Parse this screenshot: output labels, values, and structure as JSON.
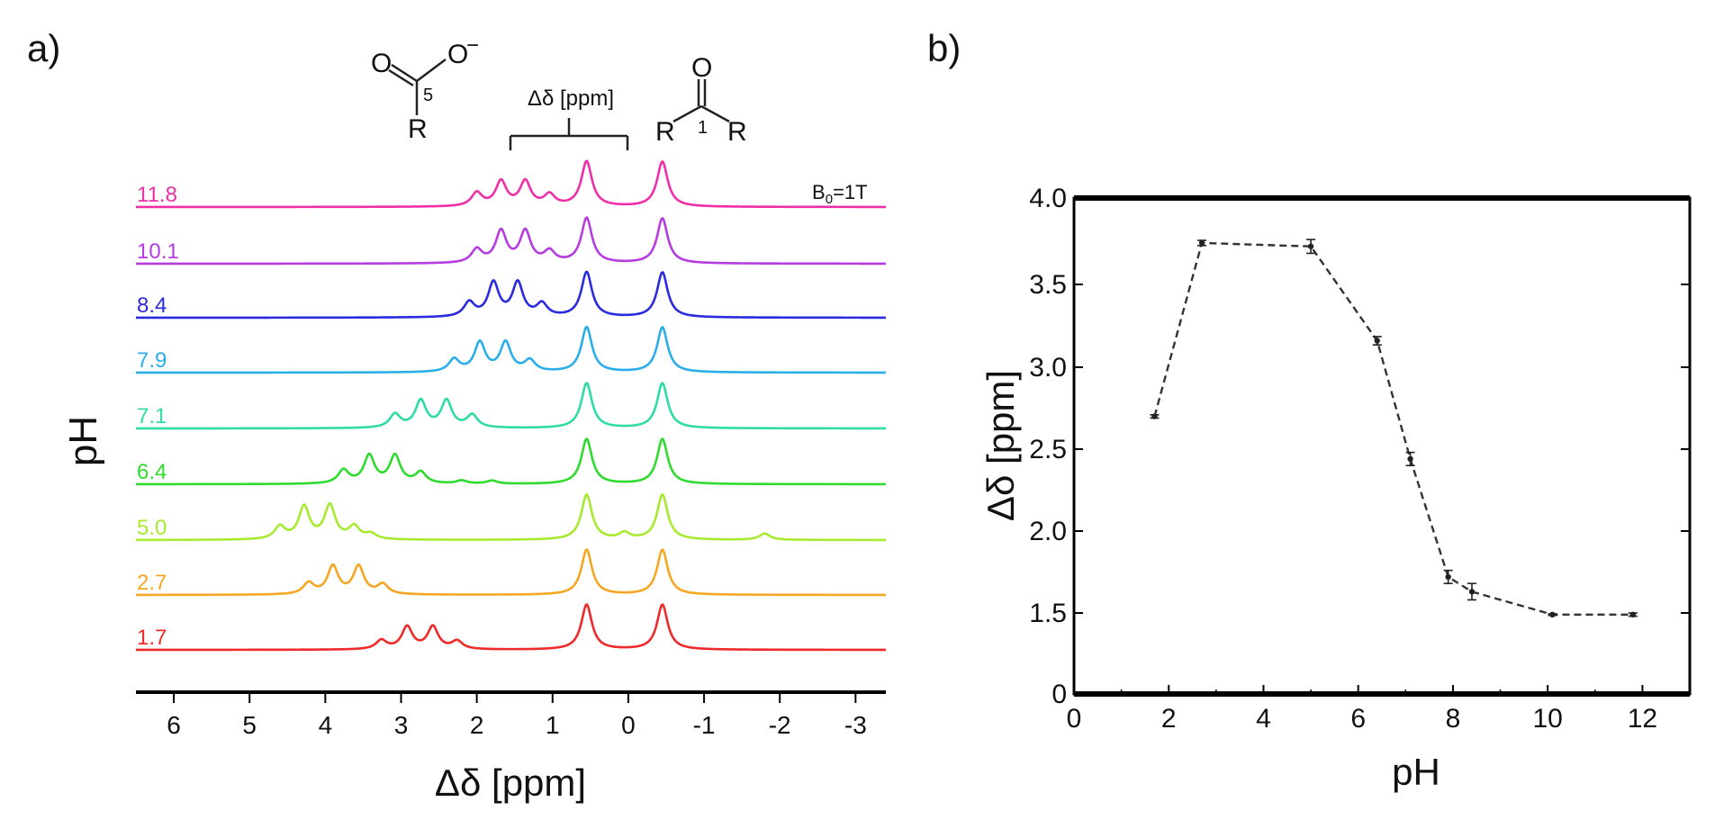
{
  "panel_a": {
    "label": "a)",
    "field_label": "B",
    "field_sub": "0",
    "field_val": "=1T",
    "bracket_label": "Δδ [ppm]",
    "carboxylate": {
      "oxygen_left": "O",
      "oxygen_right": "O",
      "charge": "−",
      "carbon_num": "5",
      "r": "R"
    },
    "ketone": {
      "oxygen": "O",
      "carbon_num": "1",
      "r_left": "R",
      "r_right": "R"
    }
  },
  "panel_b": {
    "label": "b)"
  },
  "chart_data": [
    {
      "type": "line",
      "title": "",
      "xlabel": "Δδ [ppm]",
      "ylabel": "pH",
      "x_reversed": true,
      "xlim": [
        6.5,
        -3.4
      ],
      "x_ticks": [
        6,
        5,
        4,
        3,
        2,
        1,
        0,
        -1,
        -2,
        -3
      ],
      "x_tick_labels": [
        "6",
        "5",
        "4",
        "3",
        "2",
        "1",
        "0",
        "-1",
        "-2",
        "-3"
      ],
      "ref_peaks_ppm": [
        0.55,
        -0.45
      ],
      "series": [
        {
          "name": "11.8",
          "color": "#ee2fa8",
          "peaks": [
            [
              2.0,
              0.3
            ],
            [
              1.68,
              0.55
            ],
            [
              1.36,
              0.55
            ],
            [
              1.04,
              0.25
            ]
          ]
        },
        {
          "name": "10.1",
          "color": "#b43ce0",
          "peaks": [
            [
              2.0,
              0.3
            ],
            [
              1.68,
              0.7
            ],
            [
              1.36,
              0.7
            ],
            [
              1.04,
              0.25
            ]
          ]
        },
        {
          "name": "8.4",
          "color": "#2a2adf",
          "peaks": [
            [
              2.1,
              0.32
            ],
            [
              1.78,
              0.75
            ],
            [
              1.46,
              0.75
            ],
            [
              1.14,
              0.28
            ]
          ]
        },
        {
          "name": "7.9",
          "color": "#2aaeea",
          "peaks": [
            [
              2.3,
              0.28
            ],
            [
              1.96,
              0.65
            ],
            [
              1.62,
              0.65
            ],
            [
              1.3,
              0.25
            ]
          ]
        },
        {
          "name": "7.1",
          "color": "#2fdca6",
          "peaks": [
            [
              3.08,
              0.3
            ],
            [
              2.74,
              0.6
            ],
            [
              2.4,
              0.6
            ],
            [
              2.06,
              0.28
            ]
          ]
        },
        {
          "name": "6.4",
          "color": "#2fdb2f",
          "peaks": [
            [
              3.76,
              0.3
            ],
            [
              3.42,
              0.62
            ],
            [
              3.08,
              0.62
            ],
            [
              2.74,
              0.25
            ],
            [
              2.2,
              0.07
            ],
            [
              1.8,
              0.07
            ]
          ]
        },
        {
          "name": "5.0",
          "color": "#a7ea2f",
          "peaks": [
            [
              4.6,
              0.28
            ],
            [
              4.28,
              0.72
            ],
            [
              3.94,
              0.75
            ],
            [
              3.62,
              0.28
            ],
            [
              3.4,
              0.12
            ],
            [
              0.05,
              0.14
            ],
            [
              -1.8,
              0.14
            ]
          ]
        },
        {
          "name": "2.7",
          "color": "#f5a623",
          "peaks": [
            [
              4.22,
              0.25
            ],
            [
              3.9,
              0.62
            ],
            [
              3.56,
              0.62
            ],
            [
              3.24,
              0.22
            ]
          ]
        },
        {
          "name": "1.7",
          "color": "#ee2a2a",
          "peaks": [
            [
              3.26,
              0.2
            ],
            [
              2.92,
              0.5
            ],
            [
              2.58,
              0.5
            ],
            [
              2.26,
              0.18
            ]
          ]
        }
      ]
    },
    {
      "type": "line",
      "title": "",
      "xlabel": "pH",
      "ylabel": "Δδ [ppm]",
      "xlim": [
        0,
        13
      ],
      "ylim": [
        0,
        4.0
      ],
      "x_ticks": [
        0,
        2,
        4,
        6,
        8,
        10,
        12
      ],
      "y_ticks": [
        0,
        1.5,
        2.0,
        2.5,
        3.0,
        3.5,
        4.0
      ],
      "x_tick_labels": [
        "0",
        "2",
        "4",
        "6",
        "8",
        "10",
        "12"
      ],
      "y_tick_labels": [
        "0",
        "1.5",
        "2.0",
        "2.5",
        "3.0",
        "3.5",
        "4.0"
      ],
      "line_style": "dashed",
      "color": "#333333",
      "x": [
        1.7,
        2.7,
        5.0,
        6.4,
        7.1,
        7.9,
        8.4,
        10.1,
        11.8
      ],
      "y": [
        2.7,
        3.74,
        3.72,
        3.16,
        2.44,
        1.72,
        1.63,
        1.47,
        1.47
      ],
      "yerr": [
        0.01,
        0.015,
        0.04,
        0.025,
        0.04,
        0.04,
        0.05,
        0.015,
        0.03
      ]
    }
  ]
}
